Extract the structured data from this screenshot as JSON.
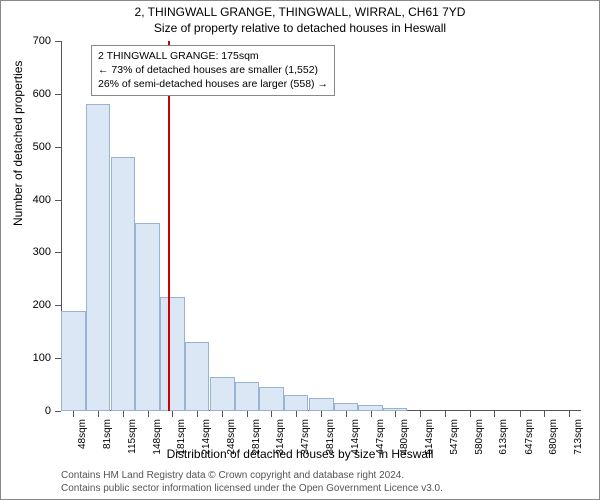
{
  "title_line1": "2, THINGWALL GRANGE, THINGWALL, WIRRAL, CH61 7YD",
  "title_line2": "Size of property relative to detached houses in Heswall",
  "y_axis_title": "Number of detached properties",
  "x_axis_title": "Distribution of detached houses by size in Heswall",
  "footer_line1": "Contains HM Land Registry data © Crown copyright and database right 2024.",
  "footer_line2": "Contains public sector information licensed under the Open Government Licence v3.0.",
  "info_box": {
    "line1": "2 THINGWALL GRANGE: 175sqm",
    "line2": "← 73% of detached houses are smaller (1,552)",
    "line3": "26% of semi-detached houses are larger (558) →"
  },
  "chart": {
    "type": "bar",
    "ylim": [
      0,
      700
    ],
    "ytick_step": 100,
    "bar_fill": "#dbe7f4",
    "bar_border": "#9ab3d0",
    "ref_line_color": "#cc0000",
    "ref_line_position": 175,
    "background_color": "#ffffff",
    "axis_color": "#555555",
    "categories": [
      "48sqm",
      "81sqm",
      "115sqm",
      "148sqm",
      "181sqm",
      "214sqm",
      "248sqm",
      "281sqm",
      "314sqm",
      "347sqm",
      "381sqm",
      "414sqm",
      "447sqm",
      "480sqm",
      "514sqm",
      "547sqm",
      "580sqm",
      "613sqm",
      "647sqm",
      "680sqm",
      "713sqm"
    ],
    "values": [
      190,
      580,
      480,
      355,
      215,
      130,
      65,
      55,
      45,
      30,
      25,
      15,
      12,
      5,
      0,
      0,
      0,
      0,
      0,
      0,
      0
    ],
    "x_range": [
      31.5,
      729.5
    ],
    "bar_interval": 33
  },
  "y_ticks": [
    {
      "v": 0,
      "label": "0"
    },
    {
      "v": 100,
      "label": "100"
    },
    {
      "v": 200,
      "label": "200"
    },
    {
      "v": 300,
      "label": "300"
    },
    {
      "v": 400,
      "label": "400"
    },
    {
      "v": 500,
      "label": "500"
    },
    {
      "v": 600,
      "label": "600"
    },
    {
      "v": 700,
      "label": "700"
    }
  ]
}
